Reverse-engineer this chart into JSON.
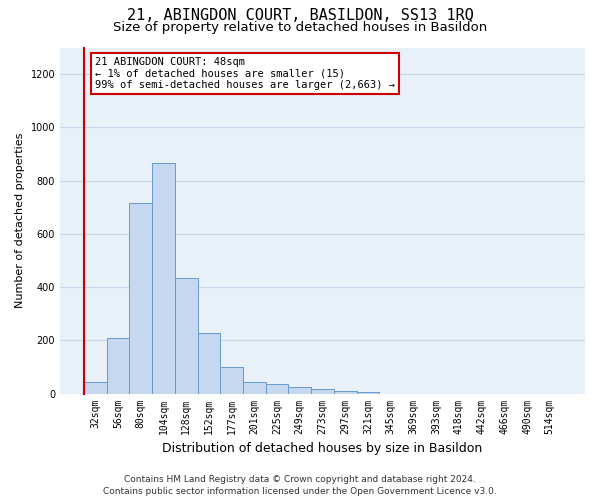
{
  "title": "21, ABINGDON COURT, BASILDON, SS13 1RQ",
  "subtitle": "Size of property relative to detached houses in Basildon",
  "xlabel": "Distribution of detached houses by size in Basildon",
  "ylabel": "Number of detached properties",
  "categories": [
    "32sqm",
    "56sqm",
    "80sqm",
    "104sqm",
    "128sqm",
    "152sqm",
    "177sqm",
    "201sqm",
    "225sqm",
    "249sqm",
    "273sqm",
    "297sqm",
    "321sqm",
    "345sqm",
    "369sqm",
    "393sqm",
    "418sqm",
    "442sqm",
    "466sqm",
    "490sqm",
    "514sqm"
  ],
  "values": [
    45,
    210,
    715,
    865,
    435,
    228,
    100,
    42,
    36,
    26,
    17,
    8,
    7,
    0,
    0,
    0,
    0,
    0,
    0,
    0,
    0
  ],
  "bar_color": "#c5d8f0",
  "bar_edge_color": "#6699cc",
  "annotation_box_text": "21 ABINGDON COURT: 48sqm\n← 1% of detached houses are smaller (15)\n99% of semi-detached houses are larger (2,663) →",
  "annotation_line_color": "#cc0000",
  "annotation_box_edge_color": "#cc0000",
  "ylim": [
    0,
    1300
  ],
  "yticks": [
    0,
    200,
    400,
    600,
    800,
    1000,
    1200
  ],
  "grid_color": "#c8daea",
  "background_color": "#e8f0f8",
  "footer_line1": "Contains HM Land Registry data © Crown copyright and database right 2024.",
  "footer_line2": "Contains public sector information licensed under the Open Government Licence v3.0.",
  "title_fontsize": 11,
  "subtitle_fontsize": 9.5,
  "xlabel_fontsize": 9,
  "ylabel_fontsize": 8,
  "tick_fontsize": 7,
  "footer_fontsize": 6.5,
  "annotation_fontsize": 7.5
}
